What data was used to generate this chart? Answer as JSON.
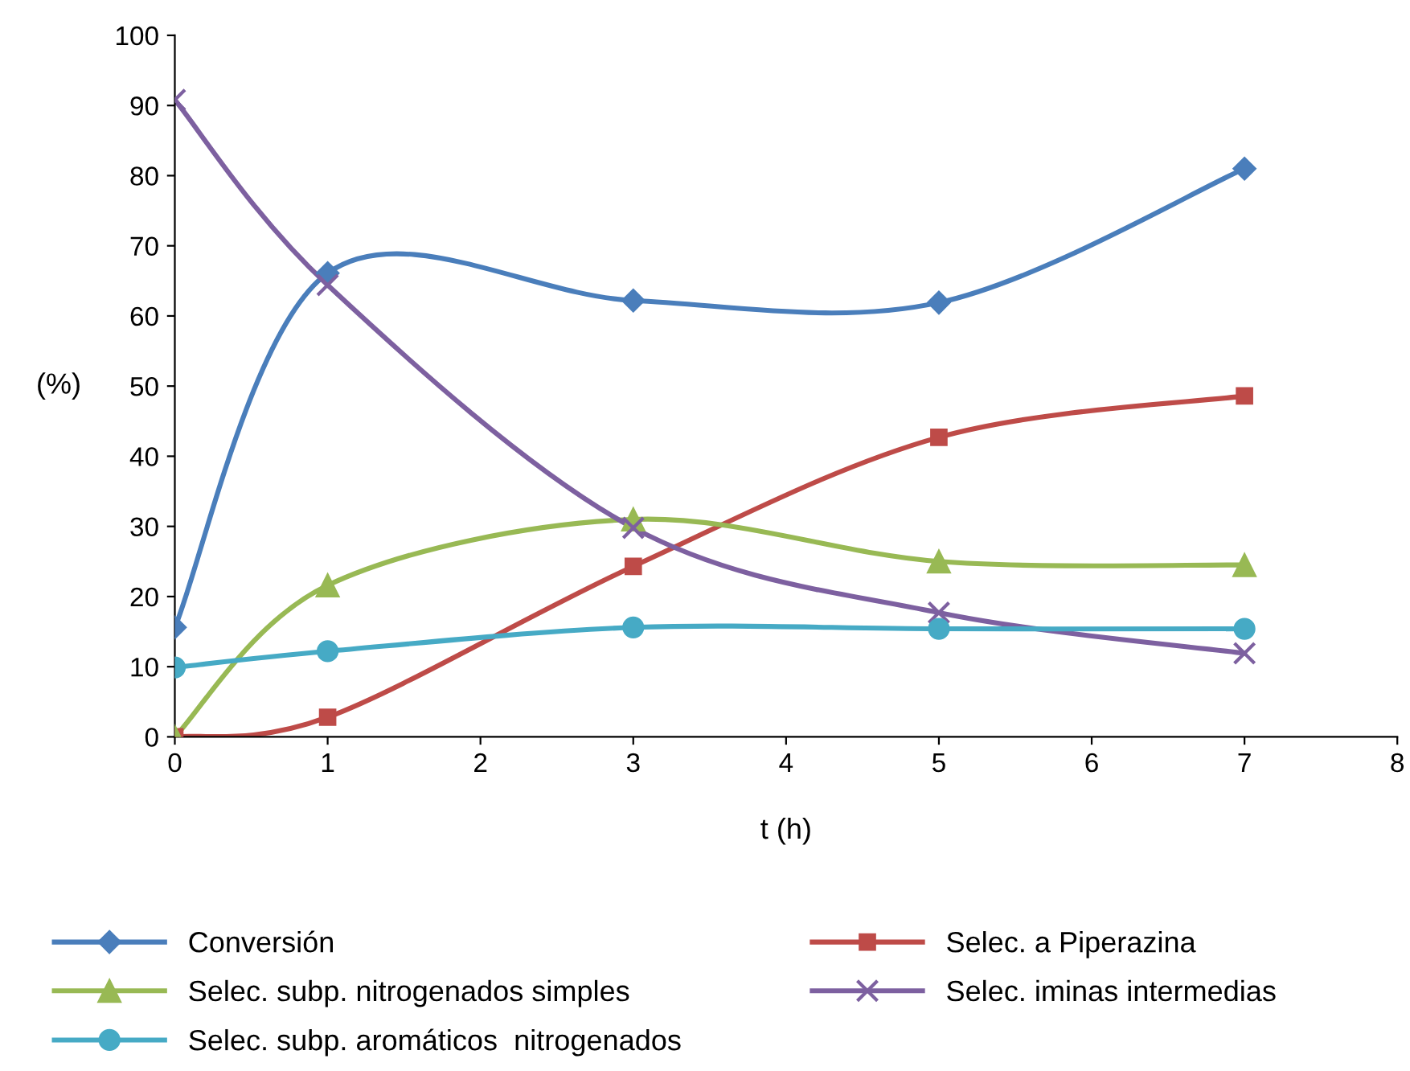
{
  "chart_data": {
    "type": "line",
    "xlabel": "t (h)",
    "ylabel": "(%)",
    "x": [
      0,
      1,
      3,
      5,
      7
    ],
    "xlim": [
      0,
      8
    ],
    "xticks": [
      0,
      1,
      2,
      3,
      4,
      5,
      6,
      7,
      8
    ],
    "ylim": [
      0,
      100
    ],
    "yticks": [
      0,
      10,
      20,
      30,
      40,
      50,
      60,
      70,
      80,
      90,
      100
    ],
    "legend": "bottom",
    "line_style": "solid",
    "series": [
      {
        "name": "Conversión",
        "color": "#4a7ebb",
        "marker": "diamond",
        "values": [
          15.6,
          66.1,
          62.2,
          61.9,
          81.0
        ]
      },
      {
        "name": "Selec. a Piperazina",
        "color": "#be4b48",
        "marker": "square",
        "values": [
          0,
          2.8,
          24.3,
          42.7,
          48.6
        ]
      },
      {
        "name": "Selec. subp. nitrogenados simples",
        "color": "#98b954",
        "marker": "triangle",
        "values": [
          0,
          21.6,
          31.0,
          25.0,
          24.5
        ]
      },
      {
        "name": "Selec. iminas intermedias",
        "color": "#7d60a0",
        "marker": "cross",
        "values": [
          90.8,
          64.4,
          29.8,
          17.7,
          11.9
        ]
      },
      {
        "name": "Selec. subp. aromáticos  nitrogenados",
        "color": "#46aac5",
        "marker": "circle",
        "values": [
          9.9,
          12.2,
          15.6,
          15.4,
          15.4
        ]
      }
    ]
  }
}
